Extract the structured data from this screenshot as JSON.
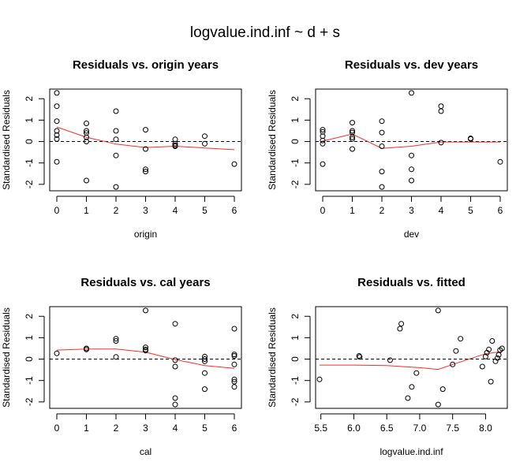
{
  "suptitle": "logvalue.ind.inf ~ d + s",
  "colors": {
    "smooth": "#ff2a2a",
    "points": "#000000",
    "reference": "#000000"
  },
  "chart_data": [
    {
      "type": "scatter",
      "title": "Residuals vs. origin years",
      "xlabel": "origin",
      "ylabel": "Standardised Residuals",
      "xlim": [
        -0.24,
        6.24
      ],
      "ylim": [
        -2.3,
        2.45
      ],
      "xticks": [
        0,
        1,
        2,
        3,
        4,
        5,
        6
      ],
      "xtick_labels": [
        "0",
        "1",
        "2",
        "3",
        "4",
        "5",
        "6"
      ],
      "yticks": [
        -2,
        -1,
        0,
        1,
        2
      ],
      "ytick_labels": [
        "-2",
        "-1",
        "0",
        "1",
        "2"
      ],
      "reference_line": 0,
      "points": [
        [
          0,
          2.27
        ],
        [
          0,
          1.65
        ],
        [
          0,
          0.95
        ],
        [
          0,
          0.5
        ],
        [
          0,
          0.3
        ],
        [
          0,
          0.12
        ],
        [
          0,
          -0.95
        ],
        [
          1,
          0.85
        ],
        [
          1,
          0.5
        ],
        [
          1,
          0.4
        ],
        [
          1,
          0.2
        ],
        [
          1,
          0.0
        ],
        [
          1,
          -1.82
        ],
        [
          2,
          1.42
        ],
        [
          2,
          0.5
        ],
        [
          2,
          0.1
        ],
        [
          2,
          -0.65
        ],
        [
          2,
          -2.12
        ],
        [
          3,
          0.55
        ],
        [
          3,
          -0.35
        ],
        [
          3,
          -1.3
        ],
        [
          3,
          -1.4
        ],
        [
          4,
          0.1
        ],
        [
          4,
          -0.1
        ],
        [
          4,
          -0.18
        ],
        [
          4,
          -0.22
        ],
        [
          5,
          0.25
        ],
        [
          5,
          -0.1
        ],
        [
          6,
          -1.05
        ]
      ],
      "smooth": [
        [
          0,
          0.68
        ],
        [
          1,
          0.2
        ],
        [
          2,
          -0.12
        ],
        [
          3,
          -0.28
        ],
        [
          4,
          -0.22
        ],
        [
          5,
          -0.3
        ],
        [
          6,
          -0.38
        ]
      ]
    },
    {
      "type": "scatter",
      "title": "Residuals vs. dev years",
      "xlabel": "dev",
      "ylabel": "Standardised Residuals",
      "xlim": [
        -0.24,
        6.24
      ],
      "ylim": [
        -2.3,
        2.45
      ],
      "xticks": [
        0,
        1,
        2,
        3,
        4,
        5,
        6
      ],
      "xtick_labels": [
        "0",
        "1",
        "2",
        "3",
        "4",
        "5",
        "6"
      ],
      "yticks": [
        -2,
        -1,
        0,
        1,
        2
      ],
      "ytick_labels": [
        "-2",
        "-1",
        "0",
        "1",
        "2"
      ],
      "reference_line": 0,
      "points": [
        [
          0,
          0.55
        ],
        [
          0,
          0.45
        ],
        [
          0,
          0.25
        ],
        [
          0,
          0.05
        ],
        [
          0,
          -0.1
        ],
        [
          0,
          -1.05
        ],
        [
          1,
          0.88
        ],
        [
          1,
          0.5
        ],
        [
          1,
          0.42
        ],
        [
          1,
          0.2
        ],
        [
          1,
          0.12
        ],
        [
          1,
          -0.35
        ],
        [
          2,
          0.95
        ],
        [
          2,
          0.42
        ],
        [
          2,
          -0.22
        ],
        [
          2,
          -1.4
        ],
        [
          2,
          -2.12
        ],
        [
          3,
          2.27
        ],
        [
          3,
          -0.65
        ],
        [
          3,
          -1.3
        ],
        [
          3,
          -1.82
        ],
        [
          4,
          1.65
        ],
        [
          4,
          1.42
        ],
        [
          4,
          -0.05
        ],
        [
          5,
          0.15
        ],
        [
          5,
          0.12
        ],
        [
          6,
          -0.95
        ]
      ],
      "smooth": [
        [
          0,
          0.02
        ],
        [
          1,
          0.35
        ],
        [
          2,
          -0.32
        ],
        [
          3,
          -0.22
        ],
        [
          4,
          -0.02
        ],
        [
          5,
          -0.02
        ],
        [
          6,
          -0.02
        ]
      ]
    },
    {
      "type": "scatter",
      "title": "Residuals vs. cal years",
      "xlabel": "cal",
      "ylabel": "Standardised Residuals",
      "xlim": [
        -0.24,
        6.24
      ],
      "ylim": [
        -2.3,
        2.45
      ],
      "xticks": [
        0,
        1,
        2,
        3,
        4,
        5,
        6
      ],
      "xtick_labels": [
        "0",
        "1",
        "2",
        "3",
        "4",
        "5",
        "6"
      ],
      "yticks": [
        -2,
        -1,
        0,
        1,
        2
      ],
      "ytick_labels": [
        "-2",
        "-1",
        "0",
        "1",
        "2"
      ],
      "reference_line": 0,
      "points": [
        [
          0,
          0.27
        ],
        [
          1,
          0.5
        ],
        [
          1,
          0.45
        ],
        [
          2,
          0.95
        ],
        [
          2,
          0.85
        ],
        [
          2,
          0.1
        ],
        [
          3,
          2.27
        ],
        [
          3,
          0.55
        ],
        [
          3,
          0.45
        ],
        [
          3,
          0.4
        ],
        [
          4,
          1.65
        ],
        [
          4,
          -0.05
        ],
        [
          4,
          -0.35
        ],
        [
          4,
          -1.82
        ],
        [
          4,
          -2.12
        ],
        [
          5,
          0.12
        ],
        [
          5,
          0.0
        ],
        [
          5,
          -0.1
        ],
        [
          5,
          -0.65
        ],
        [
          5,
          -1.4
        ],
        [
          6,
          1.42
        ],
        [
          6,
          0.22
        ],
        [
          6,
          0.15
        ],
        [
          6,
          -0.25
        ],
        [
          6,
          -0.95
        ],
        [
          6,
          -1.05
        ],
        [
          6,
          -1.3
        ]
      ],
      "smooth": [
        [
          0,
          0.42
        ],
        [
          1,
          0.47
        ],
        [
          2,
          0.47
        ],
        [
          3,
          0.32
        ],
        [
          4,
          -0.02
        ],
        [
          5,
          -0.3
        ],
        [
          6,
          -0.43
        ]
      ]
    },
    {
      "type": "scatter",
      "title": "Residuals vs. fitted",
      "xlabel": "logvalue.ind.inf",
      "ylabel": "Standardised Residuals",
      "xlim": [
        5.42,
        8.33
      ],
      "ylim": [
        -2.3,
        2.45
      ],
      "xticks": [
        5.5,
        6.0,
        6.5,
        7.0,
        7.5,
        8.0
      ],
      "xtick_labels": [
        "5.5",
        "6.0",
        "6.5",
        "7.0",
        "7.5",
        "8.0"
      ],
      "yticks": [
        -2,
        -1,
        0,
        1,
        2
      ],
      "ytick_labels": [
        "-2",
        "-1",
        "0",
        "1",
        "2"
      ],
      "reference_line": 0,
      "points": [
        [
          5.48,
          -0.95
        ],
        [
          6.08,
          0.15
        ],
        [
          6.09,
          0.1
        ],
        [
          6.55,
          -0.05
        ],
        [
          6.7,
          1.42
        ],
        [
          6.72,
          1.65
        ],
        [
          6.82,
          -1.82
        ],
        [
          6.88,
          -1.3
        ],
        [
          6.95,
          -0.65
        ],
        [
          7.28,
          2.27
        ],
        [
          7.28,
          -2.12
        ],
        [
          7.35,
          -1.4
        ],
        [
          7.5,
          -0.25
        ],
        [
          7.55,
          0.38
        ],
        [
          7.62,
          0.95
        ],
        [
          7.95,
          -0.35
        ],
        [
          8.0,
          0.12
        ],
        [
          8.02,
          0.3
        ],
        [
          8.05,
          0.45
        ],
        [
          8.08,
          -1.05
        ],
        [
          8.1,
          0.85
        ],
        [
          8.15,
          -0.1
        ],
        [
          8.18,
          0.05
        ],
        [
          8.2,
          0.2
        ],
        [
          8.22,
          0.42
        ],
        [
          8.25,
          0.5
        ]
      ],
      "smooth": [
        [
          5.48,
          -0.28
        ],
        [
          6.0,
          -0.28
        ],
        [
          6.5,
          -0.3
        ],
        [
          7.0,
          -0.4
        ],
        [
          7.28,
          -0.48
        ],
        [
          7.5,
          -0.25
        ],
        [
          7.8,
          0.05
        ],
        [
          8.0,
          0.25
        ],
        [
          8.25,
          0.35
        ]
      ]
    }
  ]
}
